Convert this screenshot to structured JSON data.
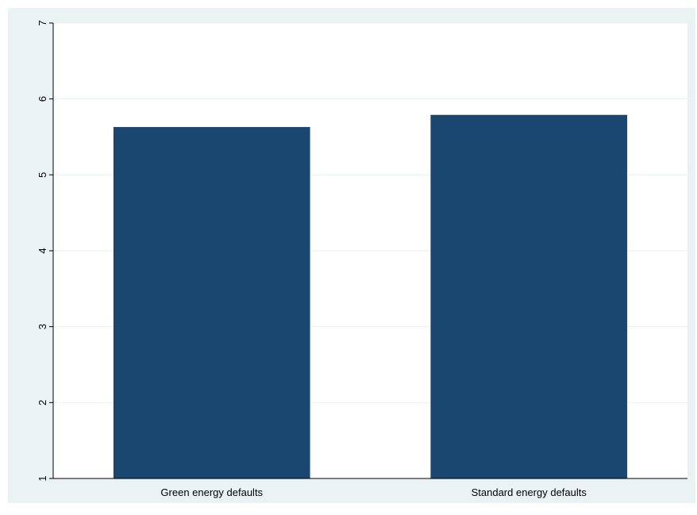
{
  "colors": {
    "outer_background": "#eaf2f3",
    "plot_background": "#ffffff",
    "bar_fill": "#1a476f",
    "gridline": "#eaf2f3",
    "axis": "#000000"
  },
  "chart_data": {
    "type": "bar",
    "categories": [
      "Green energy defaults",
      "Standard energy defaults"
    ],
    "values": [
      5.63,
      5.79
    ],
    "title": "",
    "xlabel": "",
    "ylabel": "",
    "ylim": [
      1,
      7
    ],
    "yticks": [
      1,
      2,
      3,
      4,
      5,
      6,
      7
    ],
    "ytick_labels": [
      "1",
      "2",
      "3",
      "4",
      "5",
      "6",
      "7"
    ],
    "ytick_rotation": "vertical",
    "grid": "horizontal",
    "legend": "none"
  }
}
